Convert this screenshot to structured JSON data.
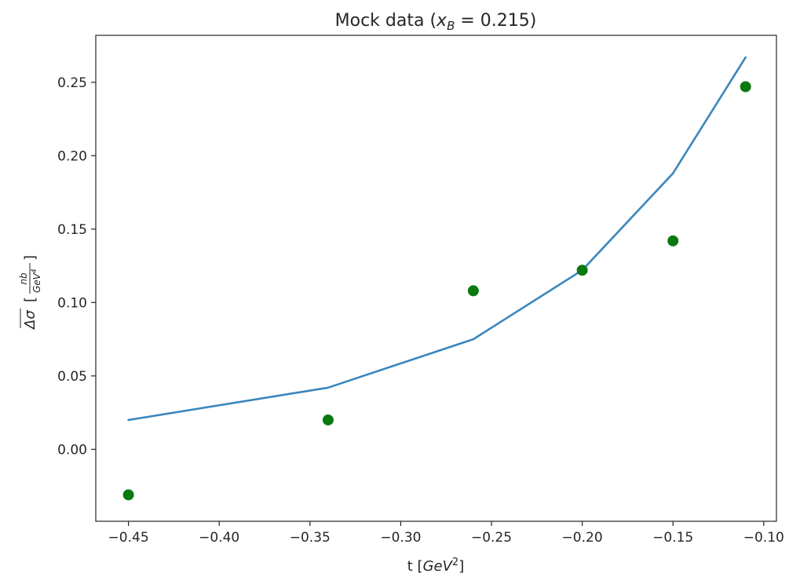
{
  "chart_data": {
    "type": "line",
    "title": "Mock data (x_B = 0.215)",
    "title_parts": {
      "prefix": "Mock data (",
      "var_main": "x",
      "var_sub": "B",
      "suffix": " = 0.215)"
    },
    "xlabel": "t [GeV²]",
    "xlabel_parts": {
      "prefix": "t [",
      "unit": "GeV",
      "power": "2",
      "suffix": "]"
    },
    "ylabel": "Δσ̄ [nb/GeV⁴]",
    "ylabel_parts": {
      "symbol": "Δσ",
      "bracket_open": "[",
      "numerator": "nb",
      "denominator": "GeV",
      "den_power": "4",
      "bracket_close": "]"
    },
    "xlim": [
      -0.468,
      -0.093
    ],
    "ylim": [
      -0.049,
      0.282
    ],
    "xticks": [
      -0.45,
      -0.4,
      -0.35,
      -0.3,
      -0.25,
      -0.2,
      -0.15,
      -0.1
    ],
    "xtick_labels": [
      "−0.45",
      "−0.40",
      "−0.35",
      "−0.30",
      "−0.25",
      "−0.20",
      "−0.15",
      "−0.10"
    ],
    "yticks": [
      0.0,
      0.05,
      0.1,
      0.15,
      0.2,
      0.25
    ],
    "ytick_labels": [
      "0.00",
      "0.05",
      "0.10",
      "0.15",
      "0.20",
      "0.25"
    ],
    "grid": false,
    "series": [
      {
        "kind": "line",
        "color": "#3a86bd",
        "x": [
          -0.45,
          -0.34,
          -0.26,
          -0.2,
          -0.15,
          -0.11
        ],
        "y": [
          0.02,
          0.042,
          0.075,
          0.122,
          0.188,
          0.267
        ]
      },
      {
        "kind": "scatter",
        "color": "#0a7a10",
        "x": [
          -0.45,
          -0.34,
          -0.26,
          -0.2,
          -0.15,
          -0.11
        ],
        "y": [
          -0.031,
          0.02,
          0.108,
          0.122,
          0.142,
          0.247
        ]
      }
    ]
  }
}
